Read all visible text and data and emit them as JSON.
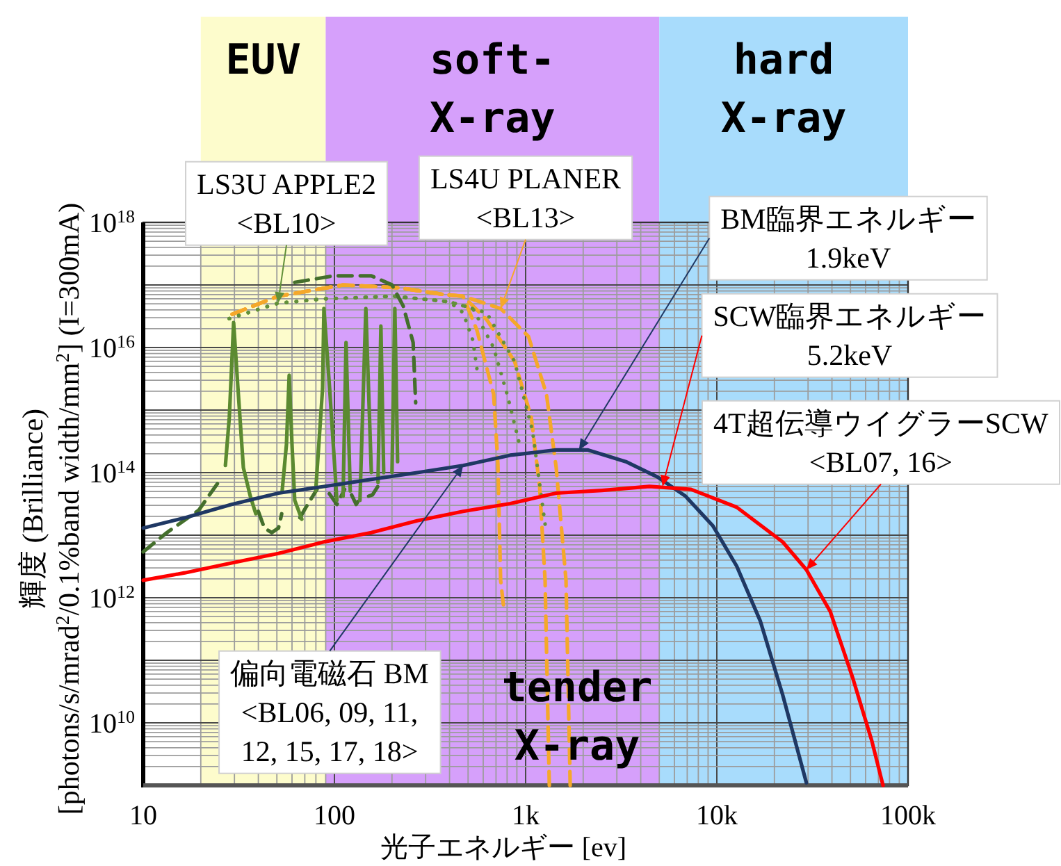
{
  "chart_data": {
    "type": "line",
    "log": "xy",
    "grid": true,
    "xlabel": "光子エネルギー [ev]",
    "ylabel": "輝度 (Brilliance)\n[photons/s/mrad$^{2}$/0.1%band width/mm$^{2}$] (I=300mA)",
    "xlim": [
      10,
      100000
    ],
    "xticks": [
      10,
      100,
      {
        "value": 1000,
        "label": "1k"
      },
      {
        "value": 10000,
        "label": "10k"
      },
      {
        "value": 100000,
        "label": "100k"
      }
    ],
    "ylim": [
      1000000000.0,
      1e+18
    ],
    "yticks": [
      {
        "value": 10000000000.0,
        "label": "10$^{10}$"
      },
      {
        "value": 100000000000.0,
        "label": null
      },
      {
        "value": 1000000000000.0,
        "label": "10$^{12}$"
      },
      {
        "value": 10000000000000.0,
        "label": null
      },
      {
        "value": 100000000000000.0,
        "label": "10$^{14}$"
      },
      {
        "value": 1000000000000000.0,
        "label": null
      },
      {
        "value": 1e+16,
        "label": "10$^{16}$"
      },
      {
        "value": 1e+17,
        "label": null
      },
      {
        "value": 1e+18,
        "label": "10$^{18}$"
      }
    ],
    "bands": [
      {
        "axis": "x",
        "from": 20,
        "to": 90,
        "label": "EUV",
        "color": "#fdfccc"
      },
      {
        "axis": "x",
        "from": 90,
        "to": 5000,
        "label": "soft-\nX-ray",
        "color": "#d6a0fb"
      },
      {
        "axis": "x",
        "from": 5000,
        "to": 100000,
        "label": "hard\nX-ray",
        "color": "#a8dcfc"
      }
    ],
    "series": [
      {
        "color": "#f5a82a",
        "line_style": "dashed",
        "x": [
          29.2,
          50.7,
          111,
          218,
          378,
          471,
          556,
          680,
          716,
          740,
          765
        ],
        "values": [
          3.4e+16,
          6.6e+16,
          1e+17,
          9e+16,
          7e+16,
          6.6e+16,
          1.9e+16,
          1800000000000000.0,
          140000000000000.0,
          1900000000000.0,
          770000000000.0
        ]
      },
      {
        "color": "#f5a82a",
        "line_style": "dashed",
        "x": [
          29.2,
          50.7,
          111,
          218,
          378,
          471,
          625,
          875,
          1070,
          1183,
          1264,
          1330
        ],
        "values": [
          3.4e+16,
          6.6e+16,
          1e+17,
          9e+16,
          7e+16,
          6.6e+16,
          2.8e+16,
          6000000000000000.0,
          770000000000000.0,
          60000000000000.0,
          1900000000000.0,
          1000000000.0
        ]
      },
      {
        "color": "#f5a82a",
        "line_style": "dashed",
        "x": [
          29.2,
          50.7,
          111,
          218,
          378,
          471,
          740,
          1035,
          1285,
          1445,
          1626,
          1710
        ],
        "values": [
          3.4e+16,
          6.6e+16,
          1e+17,
          9e+16,
          7e+16,
          6.6e+16,
          4.2e+16,
          1.5e+16,
          1800000000000000.0,
          120000000000000.0,
          1900000000000.0,
          1000000000.0
        ]
      },
      {
        "color": "#62903a",
        "line_style": "dotted",
        "x": [
          28.2,
          50.7,
          88.1,
          204,
          398,
          471,
          530,
          556
        ],
        "values": [
          2.9e+16,
          5.1e+16,
          6e+16,
          6.6e+16,
          5.4e+16,
          3.6e+16,
          1.3e+16,
          4600000000000000.0
        ]
      },
      {
        "color": "#62903a",
        "line_style": "dotted",
        "x": [
          28.2,
          50.7,
          88.1,
          204,
          398,
          530,
          680,
          804,
          920
        ],
        "values": [
          2.9e+16,
          5.1e+16,
          6e+16,
          6.6e+16,
          5.4e+16,
          4.2e+16,
          1e+16,
          1700000000000000.0,
          320000000000000.0
        ]
      },
      {
        "color": "#62903a",
        "line_style": "dotted",
        "x": [
          28.2,
          50.7,
          88.1,
          204,
          398,
          625,
          875,
          1087,
          1264
        ],
        "values": [
          2.9e+16,
          5.1e+16,
          6e+16,
          6.6e+16,
          5.4e+16,
          3.6e+16,
          6000000000000000.0,
          460000000000000.0,
          15000000000000.0
        ]
      },
      {
        "color": "#446f2c",
        "line_style": "dashed",
        "x": [
          10,
          13.3,
          19.5,
          24.7,
          null,
          40,
          43,
          47,
          51,
          53,
          null,
          66,
          71,
          81,
          null,
          94,
          103,
          113,
          null,
          123,
          130,
          139,
          null,
          151,
          158,
          172,
          null,
          62,
          99,
          156,
          200,
          229,
          258,
          266
        ],
        "values": [
          5400000000000.0,
          11000000000000.0,
          25000000000000.0,
          70000000000000.0,
          null,
          24000000000000.0,
          13000000000000.0,
          11000000000000.0,
          13000000000000.0,
          22000000000000.0,
          null,
          19000000000000.0,
          28000000000000.0,
          54000000000000.0,
          null,
          46000000000000.0,
          31000000000000.0,
          54000000000000.0,
          null,
          44000000000000.0,
          31000000000000.0,
          44000000000000.0,
          null,
          42000000000000.0,
          44000000000000.0,
          66000000000000.0,
          null,
          1.1e+17,
          1.4e+17,
          1.4e+17,
          1e+17,
          4.6e+16,
          1.2e+16,
          1300000000000000.0
        ]
      },
      {
        "color": "#5b8a30",
        "line_style": "solid",
        "x": [
          26.9,
          28.2,
          29.7,
          31.3,
          33.4,
          36.3,
          38.8,
          null,
          53.3,
          56.1,
          58,
          60,
          62,
          67.5,
          null,
          79.8,
          86.7,
          88.1,
          94.4,
          103,
          null,
          111,
          115,
          121,
          null,
          136,
          146,
          156,
          null,
          169,
          175,
          181,
          null,
          200,
          207,
          214
        ],
        "values": [
          130000000000000.0,
          770000000000000.0,
          2.5e+16,
          2200000000000000.0,
          120000000000000.0,
          42000000000000.0,
          22000000000000.0,
          null,
          51000000000000.0,
          280000000000000.0,
          3600000000000000.0,
          280000000000000.0,
          36000000000000.0,
          18000000000000.0,
          null,
          51000000000000.0,
          2200000000000000.0,
          4.2e+16,
          2200000000000000.0,
          36000000000000.0,
          null,
          42000000000000.0,
          1.2e+16,
          51000000000000.0,
          null,
          36000000000000.0,
          4.2e+16,
          100000000000000.0,
          null,
          70000000000000.0,
          2.2e+16,
          100000000000000.0,
          null,
          100000000000000.0,
          4.2e+16,
          150000000000000.0
        ]
      },
      {
        "color": "#1f3864",
        "line_style": "solid",
        "x": [
          10,
          16.5,
          29,
          51,
          88,
          156,
          271,
          471,
          832,
          1445,
          2120,
          3340,
          4900,
          6860,
          9550,
          12700,
          16900,
          22100,
          29400
        ],
        "values": [
          13000000000000.0,
          19000000000000.0,
          31000000000000.0,
          47000000000000.0,
          60000000000000.0,
          78000000000000.0,
          100000000000000.0,
          130000000000000.0,
          190000000000000.0,
          230000000000000.0,
          230000000000000.0,
          150000000000000.0,
          85000000000000.0,
          42000000000000.0,
          14000000000000.0,
          3200000000000.0,
          420000000000.0,
          28000000000.0,
          1100000000.0
        ]
      },
      {
        "color": "#ff0000",
        "line_style": "solid",
        "x": [
          10,
          16.5,
          29,
          51,
          88,
          156,
          271,
          471,
          832,
          1445,
          2510,
          4440,
          7330,
          12700,
          22100,
          29400,
          39200,
          51200,
          64700,
          74000
        ],
        "values": [
          1900000000000.0,
          2500000000000.0,
          3600000000000.0,
          5100000000000.0,
          7800000000000.0,
          11000000000000.0,
          17000000000000.0,
          24000000000000.0,
          32000000000000.0,
          47000000000000.0,
          52000000000000.0,
          60000000000000.0,
          54000000000000.0,
          28000000000000.0,
          7800000000000.0,
          2800000000000.0,
          600000000000.0,
          54000000000.0,
          5100000000.0,
          1000000000.0
        ]
      }
    ],
    "annotations": [
      {
        "text": "LS3U APPLE2\n<BL10>",
        "x": 50.7,
        "y": 5.1e+16
      },
      {
        "text": "LS4U PLANER\n<BL13>",
        "x": 740,
        "y": 4.2e+16
      },
      {
        "text": "BM臨界エネルギー\n1.9keV",
        "x": 1900,
        "y": 230000000000000.0
      },
      {
        "text": "SCW臨界エネルギー\n5.2keV",
        "x": 5200,
        "y": 60000000000000.0
      },
      {
        "text": "4T超伝導ウイグラーSCW\n<BL07, 16>",
        "x": 29400,
        "y": 2800000000000.0
      },
      {
        "text": "偏向電磁石 BM\n<BL06, 09, 11,\n12, 15, 17, 18>",
        "x": 471,
        "y": 130000000000000.0
      },
      "tender\nX-ray"
    ]
  }
}
